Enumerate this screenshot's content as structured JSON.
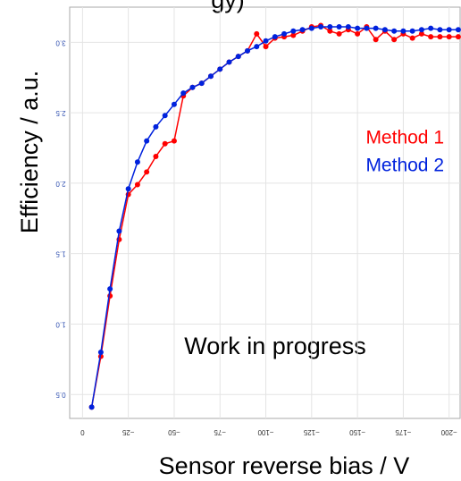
{
  "chart_data": {
    "type": "line",
    "title": "gy)",
    "x_label": "Sensor reverse bias / V",
    "y_label": "Efficiency / a.u.",
    "annotation": "Work in progress",
    "x": [
      -5,
      -10,
      -15,
      -20,
      -25,
      -30,
      -35,
      -40,
      -45,
      -50,
      -55,
      -60,
      -65,
      -70,
      -75,
      -80,
      -85,
      -90,
      -95,
      -100,
      -105,
      -110,
      -115,
      -120,
      -125,
      -130,
      -135,
      -140,
      -145,
      -150,
      -155,
      -160,
      -165,
      -170,
      -175,
      -180,
      -185,
      -190,
      -195,
      -200,
      -205
    ],
    "series": [
      {
        "name": "Method 1",
        "color": "#ff0000",
        "values": [
          0.41,
          0.77,
          1.2,
          1.6,
          1.92,
          1.99,
          2.08,
          2.19,
          2.28,
          2.3,
          2.62,
          2.68,
          2.71,
          2.76,
          2.81,
          2.86,
          2.9,
          2.94,
          3.06,
          2.97,
          3.03,
          3.04,
          3.05,
          3.08,
          3.11,
          3.12,
          3.08,
          3.06,
          3.09,
          3.06,
          3.11,
          3.02,
          3.08,
          3.02,
          3.06,
          3.03,
          3.06,
          3.04,
          3.04,
          3.04,
          3.04
        ]
      },
      {
        "name": "Method 2",
        "color": "#0022dd",
        "values": [
          0.41,
          0.8,
          1.25,
          1.66,
          1.96,
          2.15,
          2.3,
          2.4,
          2.48,
          2.56,
          2.64,
          2.68,
          2.71,
          2.76,
          2.81,
          2.86,
          2.9,
          2.94,
          2.97,
          3.01,
          3.04,
          3.06,
          3.08,
          3.09,
          3.1,
          3.11,
          3.11,
          3.11,
          3.11,
          3.1,
          3.1,
          3.1,
          3.09,
          3.08,
          3.08,
          3.08,
          3.09,
          3.1,
          3.09,
          3.09,
          3.09
        ]
      }
    ],
    "xlim": [
      7,
      -206
    ],
    "xticks": [
      0,
      {
        "value": -25,
        "label": "−25"
      },
      {
        "value": -50,
        "label": "−50"
      },
      {
        "value": -75,
        "label": "−75"
      },
      {
        "value": -100,
        "label": "−100"
      },
      {
        "value": -125,
        "label": "−125"
      },
      {
        "value": -150,
        "label": "−150"
      },
      {
        "value": -175,
        "label": "−175"
      },
      {
        "value": -200,
        "label": "−200"
      }
    ],
    "ylim": [
      0.33,
      3.25
    ],
    "yticks": [
      0.5,
      {
        "value": 1,
        "label": "1.0"
      },
      1.5,
      {
        "value": 2,
        "label": "2.0"
      },
      2.5,
      {
        "value": 3,
        "label": "3.0"
      }
    ],
    "grid": true
  }
}
